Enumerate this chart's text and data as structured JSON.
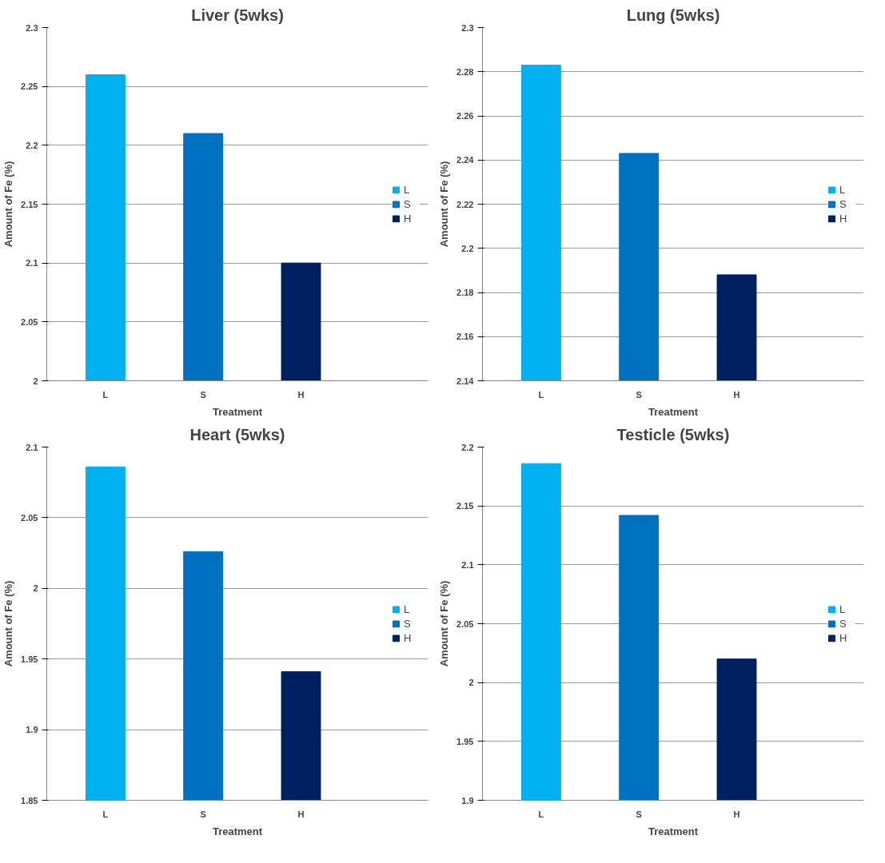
{
  "chart_data": [
    {
      "type": "bar",
      "title": "Liver (5wks)",
      "xlabel": "Treatment",
      "ylabel": "Amount of Fe (%)",
      "categories": [
        "L",
        "S",
        "H"
      ],
      "series": [
        {
          "name": "L",
          "color": "#00b0f0",
          "values": [
            2.26,
            null,
            null
          ]
        },
        {
          "name": "S",
          "color": "#0070c0",
          "values": [
            null,
            2.21,
            null
          ]
        },
        {
          "name": "H",
          "color": "#002060",
          "values": [
            null,
            null,
            2.1
          ]
        }
      ],
      "ylim": [
        2,
        2.3
      ],
      "yticks": [
        2,
        2.05,
        2.1,
        2.15,
        2.2,
        2.25,
        2.3
      ],
      "grid": "y",
      "legend": "right"
    },
    {
      "type": "bar",
      "title": "Lung (5wks)",
      "xlabel": "Treatment",
      "ylabel": "Amount of Fe (%)",
      "categories": [
        "L",
        "S",
        "H"
      ],
      "series": [
        {
          "name": "L",
          "color": "#00b0f0",
          "values": [
            2.283,
            null,
            null
          ]
        },
        {
          "name": "S",
          "color": "#0070c0",
          "values": [
            null,
            2.243,
            null
          ]
        },
        {
          "name": "H",
          "color": "#002060",
          "values": [
            null,
            null,
            2.188
          ]
        }
      ],
      "ylim": [
        2.14,
        2.3
      ],
      "yticks": [
        2.14,
        2.16,
        2.18,
        2.2,
        2.22,
        2.24,
        2.26,
        2.28,
        2.3
      ],
      "grid": "y",
      "legend": "right"
    },
    {
      "type": "bar",
      "title": "Heart (5wks)",
      "xlabel": "Treatment",
      "ylabel": "Amount of Fe (%)",
      "categories": [
        "L",
        "S",
        "H"
      ],
      "series": [
        {
          "name": "L",
          "color": "#00b0f0",
          "values": [
            2.086,
            null,
            null
          ]
        },
        {
          "name": "S",
          "color": "#0070c0",
          "values": [
            null,
            2.026,
            null
          ]
        },
        {
          "name": "H",
          "color": "#002060",
          "values": [
            null,
            null,
            1.941
          ]
        }
      ],
      "ylim": [
        1.85,
        2.1
      ],
      "yticks": [
        1.85,
        1.9,
        1.95,
        2,
        2.05,
        2.1
      ],
      "grid": "y",
      "legend": "right"
    },
    {
      "type": "bar",
      "title": "Testicle (5wks)",
      "xlabel": "Treatment",
      "ylabel": "Amount of Fe (%)",
      "categories": [
        "L",
        "S",
        "H"
      ],
      "series": [
        {
          "name": "L",
          "color": "#00b0f0",
          "values": [
            2.186,
            null,
            null
          ]
        },
        {
          "name": "S",
          "color": "#0070c0",
          "values": [
            null,
            2.142,
            null
          ]
        },
        {
          "name": "H",
          "color": "#002060",
          "values": [
            null,
            null,
            2.02
          ]
        }
      ],
      "ylim": [
        1.9,
        2.2
      ],
      "yticks": [
        1.9,
        1.95,
        2,
        2.05,
        2.1,
        2.15,
        2.2
      ],
      "grid": "y",
      "legend": "right"
    }
  ]
}
